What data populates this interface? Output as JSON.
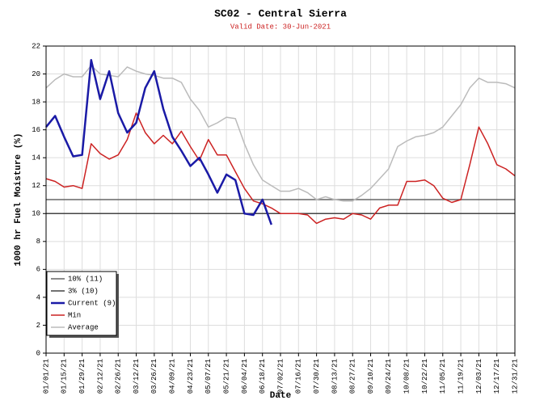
{
  "chart_data": {
    "type": "line",
    "title": "SC02 - Central Sierra",
    "subtitle": "Valid Date: 30-Jun-2021",
    "x_label": "Date",
    "y_label": "1000 hr Fuel Moisture (%)",
    "xlim": [
      "01/01/21",
      "12/31/21"
    ],
    "xticks": [
      "01/01/21",
      "01/15/21",
      "01/29/21",
      "02/12/21",
      "02/26/21",
      "03/12/21",
      "03/26/21",
      "04/09/21",
      "04/23/21",
      "05/07/21",
      "05/21/21",
      "06/04/21",
      "06/18/21",
      "07/02/21",
      "07/16/21",
      "07/30/21",
      "08/13/21",
      "08/27/21",
      "09/10/21",
      "09/24/21",
      "10/08/21",
      "10/22/21",
      "11/05/21",
      "11/19/21",
      "12/03/21",
      "12/17/21",
      "12/31/21"
    ],
    "ylim": [
      0,
      22
    ],
    "yticks": [
      0,
      2,
      4,
      6,
      8,
      10,
      12,
      14,
      16,
      18,
      20,
      22
    ],
    "grid": true,
    "legend": "lower left",
    "hlines": [
      {
        "name": "10% (11)",
        "color": "#666666",
        "value": 11
      },
      {
        "name": "3% (10)",
        "color": "#444444",
        "value": 10
      }
    ],
    "x": [
      "01/01/21",
      "01/08/21",
      "01/15/21",
      "01/22/21",
      "01/29/21",
      "02/05/21",
      "02/12/21",
      "02/19/21",
      "02/26/21",
      "03/05/21",
      "03/12/21",
      "03/19/21",
      "03/26/21",
      "04/02/21",
      "04/09/21",
      "04/16/21",
      "04/23/21",
      "04/30/21",
      "05/07/21",
      "05/14/21",
      "05/21/21",
      "05/28/21",
      "06/04/21",
      "06/11/21",
      "06/18/21",
      "06/25/21",
      "07/02/21",
      "07/09/21",
      "07/16/21",
      "07/23/21",
      "07/30/21",
      "08/06/21",
      "08/13/21",
      "08/20/21",
      "08/27/21",
      "09/03/21",
      "09/10/21",
      "09/17/21",
      "09/24/21",
      "10/01/21",
      "10/08/21",
      "10/15/21",
      "10/22/21",
      "10/29/21",
      "11/05/21",
      "11/12/21",
      "11/19/21",
      "11/26/21",
      "12/03/21",
      "12/10/21",
      "12/17/21",
      "12/24/21",
      "12/31/21"
    ],
    "series": [
      {
        "name": "Current (9)",
        "color": "#1a1aa6",
        "width": 2.5,
        "values": [
          16.2,
          17.0,
          15.5,
          14.1,
          14.2,
          21.0,
          18.2,
          20.2,
          17.2,
          15.8,
          16.5,
          19.0,
          20.2,
          17.5,
          15.5,
          14.5,
          13.4,
          14.0,
          12.8,
          11.5,
          12.8,
          12.4,
          10.0,
          9.9,
          11.0,
          9.2,
          null,
          null,
          null,
          null,
          null,
          null,
          null,
          null,
          null,
          null,
          null,
          null,
          null,
          null,
          null,
          null,
          null,
          null,
          null,
          null,
          null,
          null,
          null,
          null,
          null,
          null,
          null
        ]
      },
      {
        "name": "Min",
        "color": "#cc2222",
        "width": 1.5,
        "values": [
          12.5,
          12.3,
          11.9,
          12.0,
          11.8,
          15.0,
          14.3,
          13.9,
          14.2,
          15.3,
          17.2,
          15.8,
          15.0,
          15.6,
          15.0,
          15.9,
          14.8,
          13.8,
          15.3,
          14.2,
          14.2,
          13.0,
          11.8,
          10.9,
          10.7,
          10.4,
          10.0,
          10.0,
          10.0,
          9.9,
          9.3,
          9.6,
          9.7,
          9.6,
          10.0,
          9.9,
          9.6,
          10.4,
          10.6,
          10.6,
          12.3,
          12.3,
          12.4,
          12.0,
          11.1,
          10.8,
          11.0,
          13.5,
          16.2,
          15.0,
          13.5,
          13.2,
          12.7
        ]
      },
      {
        "name": "Average",
        "color": "#bbbbbb",
        "width": 1.5,
        "values": [
          19.0,
          19.6,
          20.0,
          19.8,
          19.8,
          20.6,
          20.0,
          19.9,
          19.8,
          20.5,
          20.2,
          20.0,
          19.9,
          19.7,
          19.7,
          19.4,
          18.2,
          17.4,
          16.2,
          16.5,
          16.9,
          16.8,
          15.0,
          13.5,
          12.4,
          12.0,
          11.6,
          11.6,
          11.8,
          11.5,
          11.0,
          11.2,
          11.0,
          10.9,
          10.9,
          11.3,
          11.8,
          12.5,
          13.2,
          14.8,
          15.2,
          15.5,
          15.6,
          15.8,
          16.2,
          17.0,
          17.8,
          19.0,
          19.7,
          19.4,
          19.4,
          19.3,
          19.0
        ]
      }
    ]
  }
}
